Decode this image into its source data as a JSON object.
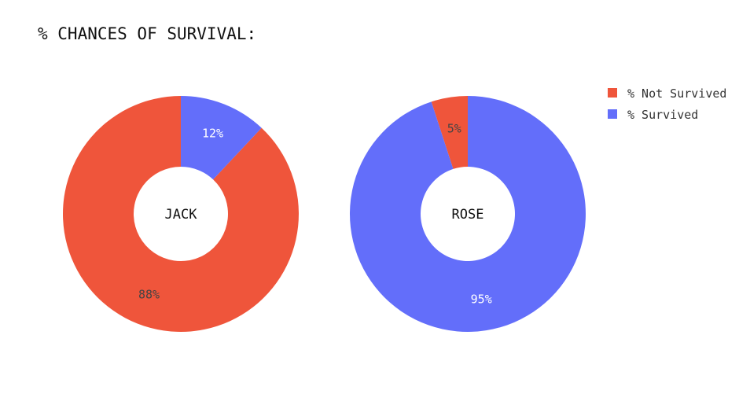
{
  "chart_data": {
    "type": "pie",
    "variant": "donut",
    "title": "% CHANCES OF SURVIVAL:",
    "legend": {
      "placement": "top-right",
      "entries": [
        {
          "name": "% Not Survived",
          "color": "#EF553B"
        },
        {
          "name": "% Survived",
          "color": "#636EFA"
        }
      ]
    },
    "charts": [
      {
        "name": "JACK",
        "slices": [
          {
            "label": "% Not Survived",
            "value": 88,
            "text": "88%",
            "color": "#EF553B",
            "text_color": "#444444"
          },
          {
            "label": "% Survived",
            "value": 12,
            "text": "12%",
            "color": "#636EFA",
            "text_color": "#ffffff"
          }
        ]
      },
      {
        "name": "ROSE",
        "slices": [
          {
            "label": "% Not Survived",
            "value": 5,
            "text": "5%",
            "color": "#EF553B",
            "text_color": "#444444"
          },
          {
            "label": "% Survived",
            "value": 95,
            "text": "95%",
            "color": "#636EFA",
            "text_color": "#ffffff"
          }
        ]
      }
    ]
  }
}
